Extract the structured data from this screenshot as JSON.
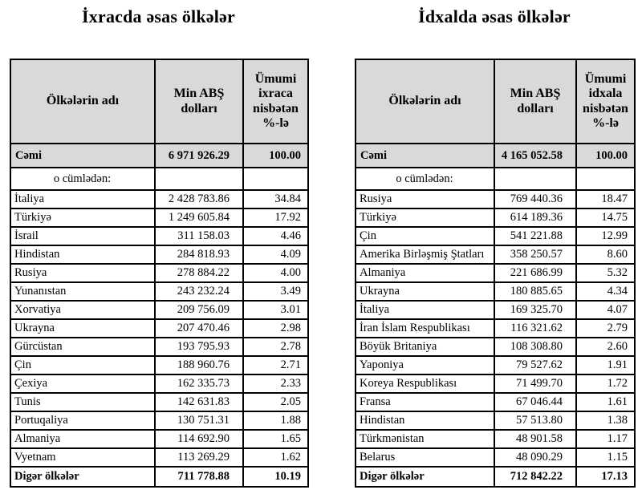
{
  "colors": {
    "header_bg": "#d9d9d9",
    "border": "#000000",
    "text": "#000000",
    "page_bg": "#ffffff"
  },
  "export_table": {
    "title": "İxracda əsas ölkələr",
    "columns": [
      "Ölkələrin adı",
      "Min ABŞ dolları",
      "Ümumi ixraca nisbətən %-lə"
    ],
    "total": {
      "label": "Cəmi",
      "value": "6 971 926.29",
      "percent": "100.00"
    },
    "subheading": "o cümlədən:",
    "rows": [
      {
        "country": "İtaliya",
        "value": "2 428 783.86",
        "percent": "34.84"
      },
      {
        "country": "Türkiyə",
        "value": "1 249 605.84",
        "percent": "17.92"
      },
      {
        "country": "İsrail",
        "value": "311 158.03",
        "percent": "4.46"
      },
      {
        "country": "Hindistan",
        "value": "284 818.93",
        "percent": "4.09"
      },
      {
        "country": "Rusiya",
        "value": "278 884.22",
        "percent": "4.00"
      },
      {
        "country": "Yunanıstan",
        "value": "243 232.24",
        "percent": "3.49"
      },
      {
        "country": "Xorvatiya",
        "value": "209 756.09",
        "percent": "3.01"
      },
      {
        "country": "Ukrayna",
        "value": "207 470.46",
        "percent": "2.98"
      },
      {
        "country": "Gürcüstan",
        "value": "193 795.93",
        "percent": "2.78"
      },
      {
        "country": "Çin",
        "value": "188 960.76",
        "percent": "2.71"
      },
      {
        "country": "Çexiya",
        "value": "162 335.73",
        "percent": "2.33"
      },
      {
        "country": "Tunis",
        "value": "142 631.83",
        "percent": "2.05"
      },
      {
        "country": "Portuqaliya",
        "value": "130 751.31",
        "percent": "1.88"
      },
      {
        "country": "Almaniya",
        "value": "114 692.90",
        "percent": "1.65"
      },
      {
        "country": "Vyetnam",
        "value": "113 269.29",
        "percent": "1.62"
      }
    ],
    "footer": {
      "label": "Digər ölkələr",
      "value": "711 778.88",
      "percent": "10.19"
    }
  },
  "import_table": {
    "title": "İdxalda əsas ölkələr",
    "columns": [
      "Ölkələrin adı",
      "Min ABŞ dolları",
      "Ümumi idxala nisbətən %-lə"
    ],
    "total": {
      "label": "Cəmi",
      "value": "4 165 052.58",
      "percent": "100.00"
    },
    "subheading": "o cümlədən:",
    "rows": [
      {
        "country": "Rusiya",
        "value": "769 440.36",
        "percent": "18.47"
      },
      {
        "country": "Türkiyə",
        "value": "614 189.36",
        "percent": "14.75"
      },
      {
        "country": "Çin",
        "value": "541 221.88",
        "percent": "12.99"
      },
      {
        "country": "Amerika Birləşmiş Ştatları",
        "value": "358 250.57",
        "percent": "8.60"
      },
      {
        "country": "Almaniya",
        "value": "221 686.99",
        "percent": "5.32"
      },
      {
        "country": "Ukrayna",
        "value": "180 885.65",
        "percent": "4.34"
      },
      {
        "country": "İtaliya",
        "value": "169 325.70",
        "percent": "4.07"
      },
      {
        "country": "İran İslam Respublikası",
        "value": "116 321.62",
        "percent": "2.79"
      },
      {
        "country": "Böyük Britaniya",
        "value": "108 308.80",
        "percent": "2.60"
      },
      {
        "country": "Yaponiya",
        "value": "79 527.62",
        "percent": "1.91"
      },
      {
        "country": "Koreya Respublikası",
        "value": "71 499.70",
        "percent": "1.72"
      },
      {
        "country": "Fransa",
        "value": "67 046.44",
        "percent": "1.61"
      },
      {
        "country": "Hindistan",
        "value": "57 513.80",
        "percent": "1.38"
      },
      {
        "country": "Türkmənistan",
        "value": "48 901.58",
        "percent": "1.17"
      },
      {
        "country": "Belarus",
        "value": "48 090.29",
        "percent": "1.15"
      }
    ],
    "footer": {
      "label": "Digər ölkələr",
      "value": "712 842.22",
      "percent": "17.13"
    }
  }
}
